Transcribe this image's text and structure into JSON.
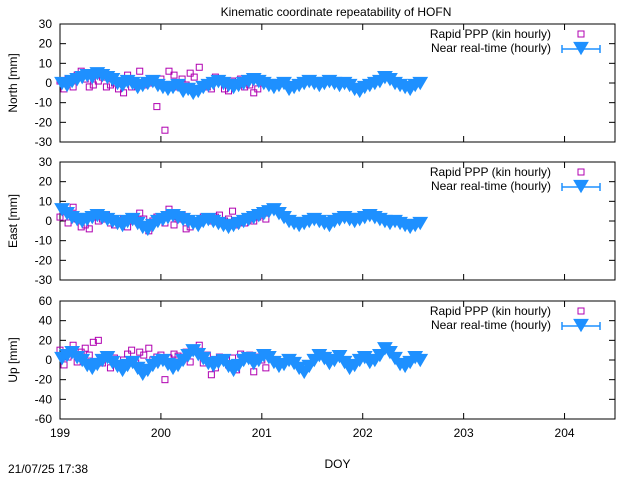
{
  "title": "Kinematic coordinate repeatability of HOFN",
  "timestamp": "21/07/25 17:38",
  "colors": {
    "ppp": "#b000b0",
    "nrt": "#1e90ff",
    "axis": "#000000"
  },
  "chart_data": [
    {
      "type": "scatter",
      "ylabel": "North [mm]",
      "ylim": [
        -30,
        30
      ],
      "yticks": [
        "30",
        "20",
        "10",
        "0",
        "-10",
        "-20",
        "-30"
      ],
      "xlim": [
        199,
        204.5
      ],
      "legend_position": "top-right",
      "series": [
        {
          "name": "Rapid PPP (kin hourly)",
          "marker": "open-square",
          "x": [
            199.0,
            199.04,
            199.08,
            199.13,
            199.17,
            199.21,
            199.25,
            199.29,
            199.33,
            199.38,
            199.42,
            199.46,
            199.5,
            199.54,
            199.58,
            199.63,
            199.67,
            199.71,
            199.75,
            199.79,
            199.83,
            199.88,
            199.92,
            199.96,
            200.0,
            200.04,
            200.08,
            200.13,
            200.17,
            200.21,
            200.25,
            200.29,
            200.33,
            200.38,
            200.42,
            200.46,
            200.5,
            200.54,
            200.58,
            200.63,
            200.67,
            200.71,
            200.75,
            200.79,
            200.83,
            200.88,
            200.92,
            200.96,
            201.0,
            201.04
          ],
          "y": [
            1,
            -3,
            2,
            -2,
            4,
            6,
            2,
            -2,
            -1,
            1,
            3,
            -2,
            -1,
            0,
            -3,
            -5,
            4,
            -2,
            0,
            6,
            -1,
            0,
            2,
            -12,
            2,
            -24,
            6,
            4,
            -2,
            2,
            -1,
            5,
            3,
            8,
            -1,
            -2,
            -3,
            3,
            1,
            -3,
            -4,
            1,
            -1,
            2,
            -2,
            -1,
            -5,
            -3,
            0,
            1
          ]
        },
        {
          "name": "Near real-time (hourly)",
          "marker": "triangle-down",
          "x": [
            199.02,
            199.07,
            199.12,
            199.17,
            199.22,
            199.27,
            199.32,
            199.37,
            199.42,
            199.47,
            199.52,
            199.57,
            199.62,
            199.67,
            199.72,
            199.77,
            199.82,
            199.87,
            199.92,
            199.97,
            200.02,
            200.07,
            200.12,
            200.17,
            200.22,
            200.27,
            200.32,
            200.37,
            200.42,
            200.47,
            200.52,
            200.57,
            200.62,
            200.67,
            200.72,
            200.77,
            200.82,
            200.87,
            200.92,
            200.97,
            201.02,
            201.07,
            201.12,
            201.17,
            201.22,
            201.27,
            201.32,
            201.37,
            201.42,
            201.47,
            201.52,
            201.57,
            201.62,
            201.67,
            201.72,
            201.77,
            201.82,
            201.87,
            201.92,
            201.97,
            202.02,
            202.07,
            202.12,
            202.17,
            202.22,
            202.27,
            202.32,
            202.37,
            202.42,
            202.47,
            202.52,
            202.57
          ],
          "y": [
            0,
            -1,
            1,
            2,
            3,
            4,
            3,
            5,
            4,
            3,
            2,
            0,
            -1,
            1,
            0,
            -2,
            -1,
            0,
            1,
            -1,
            -2,
            -3,
            -2,
            -1,
            -4,
            -3,
            -5,
            -4,
            -2,
            -1,
            0,
            1,
            0,
            -1,
            -2,
            -1,
            0,
            1,
            2,
            1,
            0,
            -1,
            -2,
            -1,
            0,
            -3,
            -2,
            -1,
            0,
            1,
            0,
            -1,
            0,
            1,
            0,
            -1,
            0,
            -1,
            -3,
            -4,
            -2,
            -1,
            0,
            1,
            3,
            2,
            0,
            -1,
            -2,
            -3,
            -1,
            0
          ]
        }
      ]
    },
    {
      "type": "scatter",
      "ylabel": "East [mm]",
      "ylim": [
        -30,
        30
      ],
      "yticks": [
        "30",
        "20",
        "10",
        "0",
        "-10",
        "-20",
        "-30"
      ],
      "xlim": [
        199,
        204.5
      ],
      "legend_position": "top-right",
      "series": [
        {
          "name": "Rapid PPP (kin hourly)",
          "marker": "open-square",
          "x": [
            199.0,
            199.04,
            199.08,
            199.13,
            199.17,
            199.21,
            199.25,
            199.29,
            199.33,
            199.38,
            199.42,
            199.46,
            199.5,
            199.54,
            199.58,
            199.63,
            199.67,
            199.71,
            199.75,
            199.79,
            199.83,
            199.88,
            199.92,
            199.96,
            200.0,
            200.04,
            200.08,
            200.13,
            200.17,
            200.21,
            200.25,
            200.29,
            200.33,
            200.38,
            200.42,
            200.46,
            200.5,
            200.54,
            200.58,
            200.63,
            200.67,
            200.71,
            200.75,
            200.79,
            200.83,
            200.88,
            200.92,
            200.96,
            201.0,
            201.04
          ],
          "y": [
            2,
            5,
            -1,
            7,
            1,
            -3,
            -2,
            -4,
            2,
            0,
            1,
            3,
            -1,
            -2,
            0,
            1,
            -3,
            0,
            2,
            4,
            1,
            -5,
            0,
            2,
            1,
            -1,
            6,
            -2,
            1,
            3,
            -4,
            -3,
            0,
            -1,
            2,
            1,
            0,
            2,
            3,
            0,
            1,
            5,
            -2,
            0,
            -1,
            1,
            0,
            2,
            3,
            1
          ]
        },
        {
          "name": "Near real-time (hourly)",
          "marker": "triangle-down",
          "x": [
            199.02,
            199.07,
            199.12,
            199.17,
            199.22,
            199.27,
            199.32,
            199.37,
            199.42,
            199.47,
            199.52,
            199.57,
            199.62,
            199.67,
            199.72,
            199.77,
            199.82,
            199.87,
            199.92,
            199.97,
            200.02,
            200.07,
            200.12,
            200.17,
            200.22,
            200.27,
            200.32,
            200.37,
            200.42,
            200.47,
            200.52,
            200.57,
            200.62,
            200.67,
            200.72,
            200.77,
            200.82,
            200.87,
            200.92,
            200.97,
            201.02,
            201.07,
            201.12,
            201.17,
            201.22,
            201.27,
            201.32,
            201.37,
            201.42,
            201.47,
            201.52,
            201.57,
            201.62,
            201.67,
            201.72,
            201.77,
            201.82,
            201.87,
            201.92,
            201.97,
            202.02,
            202.07,
            202.12,
            202.17,
            202.22,
            202.27,
            202.32,
            202.37,
            202.42,
            202.47,
            202.52,
            202.57
          ],
          "y": [
            6,
            4,
            2,
            1,
            0,
            1,
            2,
            3,
            2,
            1,
            0,
            -1,
            -2,
            0,
            1,
            -1,
            -3,
            -4,
            -2,
            0,
            1,
            2,
            3,
            2,
            1,
            0,
            -1,
            -2,
            0,
            1,
            0,
            -1,
            -2,
            -3,
            -2,
            -1,
            0,
            1,
            2,
            3,
            4,
            5,
            6,
            4,
            2,
            0,
            -1,
            -2,
            -1,
            0,
            1,
            0,
            -1,
            -2,
            0,
            1,
            2,
            1,
            0,
            1,
            2,
            3,
            2,
            1,
            0,
            -1,
            0,
            -1,
            -2,
            -3,
            -2,
            -1
          ]
        }
      ]
    },
    {
      "type": "scatter",
      "ylabel": "Up [mm]",
      "xlabel": "DOY",
      "ylim": [
        -60,
        60
      ],
      "yticks": [
        "60",
        "40",
        "20",
        "0",
        "-20",
        "-40",
        "-60"
      ],
      "xlim": [
        199,
        204.5
      ],
      "xticks": [
        "199",
        "200",
        "201",
        "202",
        "203",
        "204"
      ],
      "legend_position": "top-right",
      "series": [
        {
          "name": "Rapid PPP (kin hourly)",
          "marker": "open-square",
          "x": [
            199.0,
            199.04,
            199.08,
            199.13,
            199.17,
            199.21,
            199.25,
            199.29,
            199.33,
            199.38,
            199.42,
            199.46,
            199.5,
            199.54,
            199.58,
            199.63,
            199.67,
            199.71,
            199.75,
            199.79,
            199.83,
            199.88,
            199.92,
            199.96,
            200.0,
            200.04,
            200.08,
            200.13,
            200.17,
            200.21,
            200.25,
            200.29,
            200.33,
            200.38,
            200.42,
            200.46,
            200.5,
            200.54,
            200.58,
            200.63,
            200.67,
            200.71,
            200.75,
            200.79,
            200.83,
            200.88,
            200.92,
            200.96,
            201.0,
            201.04
          ],
          "y": [
            10,
            -5,
            3,
            15,
            -2,
            8,
            12,
            5,
            18,
            20,
            -3,
            4,
            -8,
            2,
            -5,
            0,
            6,
            10,
            -3,
            8,
            5,
            12,
            0,
            3,
            5,
            -20,
            2,
            6,
            4,
            0,
            8,
            -2,
            10,
            15,
            -3,
            5,
            -15,
            -8,
            3,
            0,
            -5,
            2,
            -10,
            6,
            2,
            5,
            -12,
            3,
            0,
            -8
          ]
        },
        {
          "name": "Near real-time (hourly)",
          "marker": "triangle-down",
          "x": [
            199.02,
            199.07,
            199.12,
            199.17,
            199.22,
            199.27,
            199.32,
            199.37,
            199.42,
            199.47,
            199.52,
            199.57,
            199.62,
            199.67,
            199.72,
            199.77,
            199.82,
            199.87,
            199.92,
            199.97,
            200.02,
            200.07,
            200.12,
            200.17,
            200.22,
            200.27,
            200.32,
            200.37,
            200.42,
            200.47,
            200.52,
            200.57,
            200.62,
            200.67,
            200.72,
            200.77,
            200.82,
            200.87,
            200.92,
            200.97,
            201.02,
            201.07,
            201.12,
            201.17,
            201.22,
            201.27,
            201.32,
            201.37,
            201.42,
            201.47,
            201.52,
            201.57,
            201.62,
            201.67,
            201.72,
            201.77,
            201.82,
            201.87,
            201.92,
            201.97,
            202.02,
            202.07,
            202.12,
            202.17,
            202.22,
            202.27,
            202.32,
            202.37,
            202.42,
            202.47,
            202.52,
            202.57
          ],
          "y": [
            2,
            5,
            8,
            3,
            0,
            -5,
            -8,
            -4,
            0,
            3,
            -2,
            -6,
            -10,
            -5,
            -2,
            -8,
            -14,
            -10,
            -5,
            -2,
            0,
            -4,
            -8,
            -5,
            0,
            5,
            10,
            6,
            2,
            -3,
            -5,
            -2,
            0,
            -6,
            -10,
            -5,
            0,
            2,
            -3,
            0,
            5,
            3,
            -2,
            -6,
            -4,
            0,
            -3,
            -8,
            -12,
            -6,
            0,
            5,
            2,
            -3,
            0,
            4,
            -2,
            -8,
            -5,
            0,
            3,
            -2,
            0,
            5,
            12,
            8,
            2,
            -4,
            -6,
            -2,
            3,
            0
          ]
        }
      ]
    }
  ]
}
